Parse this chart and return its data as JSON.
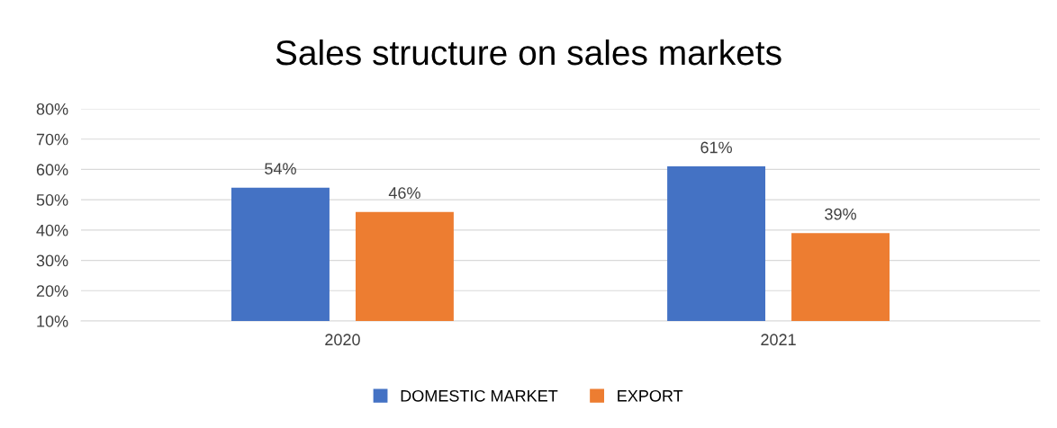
{
  "chart_data": {
    "type": "bar",
    "title": "Sales structure on sales markets",
    "categories": [
      "2020",
      "2021"
    ],
    "series": [
      {
        "name": "DOMESTIC MARKET",
        "color": "#4472c4",
        "values": [
          54,
          61
        ],
        "value_labels": [
          "54%",
          "61%"
        ]
      },
      {
        "name": "EXPORT",
        "color": "#ed7d31",
        "values": [
          46,
          39
        ],
        "value_labels": [
          "46%",
          "39%"
        ]
      }
    ],
    "ylim": [
      10,
      80
    ],
    "yticks": [
      {
        "value": 10,
        "label": "10%"
      },
      {
        "value": 20,
        "label": "20%"
      },
      {
        "value": 30,
        "label": "30%"
      },
      {
        "value": 40,
        "label": "40%"
      },
      {
        "value": 50,
        "label": "50%"
      },
      {
        "value": 60,
        "label": "60%"
      },
      {
        "value": 70,
        "label": "70%"
      },
      {
        "value": 80,
        "label": "80%"
      }
    ],
    "grid": "y",
    "legend": "bottom"
  }
}
